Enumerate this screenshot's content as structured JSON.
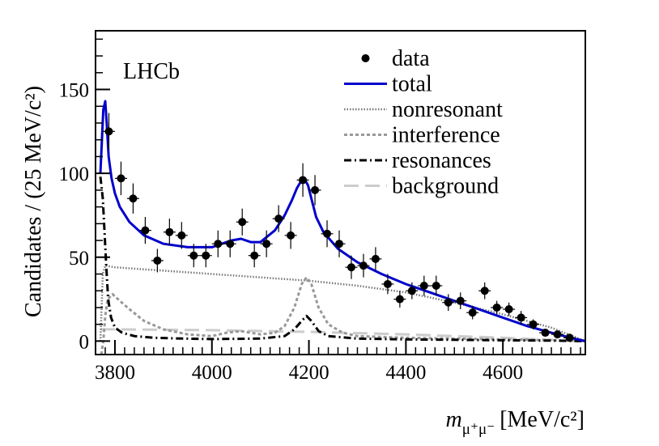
{
  "chart_data": {
    "type": "line",
    "experiment_label": "LHCb",
    "xlabel": {
      "symbol": "m",
      "subscript": "μ⁺μ⁻",
      "unit": "[MeV/c²]"
    },
    "ylabel": "Candidates / (25 MeV/c²)",
    "xlim": [
      3760,
      4770
    ],
    "ylim": [
      -8,
      185
    ],
    "x_ticks": [
      3800,
      4000,
      4200,
      4400,
      4600
    ],
    "y_ticks": [
      0,
      50,
      100,
      150
    ],
    "legend": {
      "position": "top-right",
      "entries": [
        {
          "key": "data",
          "label": "data",
          "style": "marker"
        },
        {
          "key": "total",
          "label": "total",
          "color": "#0000cc",
          "style": "solid"
        },
        {
          "key": "nonresonant",
          "label": "nonresonant",
          "color": "#777777",
          "style": "dotted"
        },
        {
          "key": "interference",
          "label": "interference",
          "color": "#999999",
          "style": "dashed-short"
        },
        {
          "key": "resonances",
          "label": "resonances",
          "color": "#000000",
          "style": "dash-dot"
        },
        {
          "key": "background",
          "label": "background",
          "color": "#cccccc",
          "style": "dashed-long"
        }
      ]
    },
    "data_points": {
      "x": [
        3787.5,
        3812.5,
        3837.5,
        3862.5,
        3887.5,
        3912.5,
        3937.5,
        3962.5,
        3987.5,
        4012.5,
        4037.5,
        4062.5,
        4087.5,
        4112.5,
        4137.5,
        4162.5,
        4187.5,
        4212.5,
        4237.5,
        4262.5,
        4287.5,
        4312.5,
        4337.5,
        4362.5,
        4387.5,
        4412.5,
        4437.5,
        4462.5,
        4487.5,
        4512.5,
        4537.5,
        4562.5,
        4587.5,
        4612.5,
        4637.5,
        4662.5,
        4687.5,
        4712.5,
        4737.5
      ],
      "y": [
        125,
        97,
        85,
        66,
        48,
        65,
        63,
        51,
        51,
        58,
        58,
        71,
        51,
        58,
        73,
        63,
        96,
        90,
        64,
        58,
        44,
        45,
        49,
        34,
        25,
        30,
        33,
        33,
        23,
        24,
        17,
        30,
        20,
        19,
        14,
        10,
        5,
        4,
        2
      ],
      "yerr": [
        11,
        10,
        9,
        8,
        7,
        8,
        8,
        7,
        7,
        8,
        8,
        8,
        7,
        8,
        8,
        8,
        10,
        9,
        8,
        8,
        7,
        7,
        7,
        6,
        5,
        5,
        6,
        6,
        5,
        5,
        4,
        5,
        4,
        4,
        4,
        3,
        2,
        2,
        1.5
      ],
      "xerr": 12.5
    },
    "series": [
      {
        "name": "total",
        "x": [
          3770,
          3776,
          3780,
          3783,
          3787,
          3793,
          3800,
          3810,
          3830,
          3860,
          3900,
          3950,
          4000,
          4040,
          4060,
          4080,
          4100,
          4130,
          4150,
          4165,
          4175,
          4185,
          4192,
          4198,
          4205,
          4215,
          4230,
          4260,
          4300,
          4350,
          4400,
          4450,
          4500,
          4550,
          4600,
          4650,
          4700,
          4740,
          4770
        ],
        "y": [
          100,
          138,
          143,
          130,
          110,
          97,
          88,
          80,
          71,
          63,
          58,
          56,
          56,
          60,
          61,
          59,
          59,
          66,
          75,
          84,
          91,
          96,
          96,
          93,
          85,
          74,
          65,
          55,
          47,
          40,
          34,
          29,
          24,
          19,
          14,
          9,
          5,
          2,
          0
        ]
      },
      {
        "name": "nonresonant",
        "x": [
          3770,
          3775,
          3780,
          3800,
          3900,
          4000,
          4100,
          4200,
          4300,
          4400,
          4500,
          4600,
          4700,
          4770
        ],
        "y": [
          0,
          40,
          45,
          44,
          42,
          40,
          38,
          36,
          33,
          29,
          23,
          16,
          8,
          0
        ]
      },
      {
        "name": "interference",
        "x": [
          3772,
          3776,
          3780,
          3785,
          3795,
          3810,
          3830,
          3860,
          3900,
          3950,
          4000,
          4030,
          4060,
          4080,
          4100,
          4130,
          4150,
          4170,
          4185,
          4195,
          4205,
          4220,
          4240,
          4270,
          4300,
          4400,
          4500,
          4600,
          4700,
          4770
        ],
        "y": [
          -8,
          0,
          15,
          25,
          28,
          24,
          19,
          12,
          7,
          4,
          3,
          5,
          6,
          5,
          4,
          5,
          9,
          20,
          34,
          38,
          34,
          20,
          10,
          5,
          3,
          2,
          1.5,
          1,
          0.5,
          0
        ]
      },
      {
        "name": "resonances",
        "x": [
          3770,
          3775,
          3778,
          3782,
          3786,
          3792,
          3800,
          3815,
          3840,
          3880,
          3940,
          4000,
          4100,
          4150,
          4170,
          4185,
          4195,
          4205,
          4220,
          4240,
          4300,
          4400,
          4500,
          4600,
          4700,
          4770
        ],
        "y": [
          98,
          85,
          68,
          45,
          25,
          14,
          8,
          5,
          3,
          2,
          1.5,
          1.2,
          1.5,
          3,
          7,
          12,
          15,
          12,
          6,
          3,
          1.5,
          1,
          0.8,
          0.5,
          0.3,
          0
        ]
      },
      {
        "name": "background",
        "x": [
          3770,
          3800,
          4000,
          4200,
          4400,
          4600,
          4770
        ],
        "y": [
          7,
          7,
          6.5,
          5.5,
          4,
          2,
          0
        ]
      }
    ]
  }
}
